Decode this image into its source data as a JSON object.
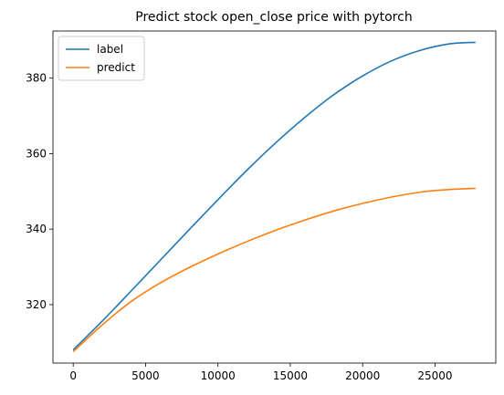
{
  "chart_data": {
    "type": "line",
    "title": "Predict stock open_close price with pytorch",
    "xlabel": "",
    "ylabel": "",
    "xlim": [
      -1400,
      29200
    ],
    "ylim": [
      304.5,
      392.5
    ],
    "xticks": [
      0,
      5000,
      10000,
      15000,
      20000,
      25000
    ],
    "yticks": [
      320,
      340,
      360,
      380
    ],
    "grid": false,
    "legend_position": "upper left",
    "series": [
      {
        "name": "label",
        "color": "#1f77b4",
        "x": [
          0,
          2000,
          4000,
          6000,
          8000,
          10000,
          12000,
          14000,
          16000,
          18000,
          20000,
          22000,
          24000,
          26000,
          27800
        ],
        "y": [
          308.0,
          315.6,
          323.6,
          331.7,
          339.8,
          347.8,
          355.6,
          362.9,
          369.6,
          375.6,
          380.6,
          384.6,
          387.4,
          389.1,
          389.5
        ]
      },
      {
        "name": "predict",
        "color": "#ff7f0e",
        "x": [
          0,
          2000,
          4000,
          6000,
          8000,
          10000,
          12000,
          14000,
          16000,
          18000,
          20000,
          22000,
          24000,
          26000,
          27800
        ],
        "y": [
          307.5,
          314.6,
          320.8,
          325.7,
          329.8,
          333.4,
          336.7,
          339.7,
          342.4,
          344.8,
          346.8,
          348.5,
          349.8,
          350.5,
          350.8
        ]
      }
    ]
  }
}
